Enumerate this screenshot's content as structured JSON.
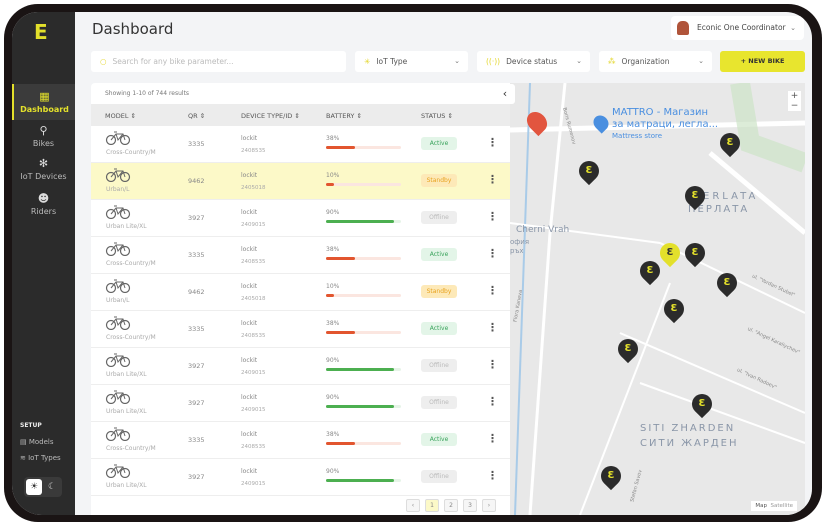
{
  "app": {
    "logo": "E",
    "title": "Dashboard"
  },
  "sidebar": {
    "items": [
      {
        "label": "Dashboard",
        "icon": "grid-icon",
        "active": true
      },
      {
        "label": "Bikes",
        "icon": "bike-icon"
      },
      {
        "label": "IoT Devices",
        "icon": "network-icon"
      },
      {
        "label": "Riders",
        "icon": "users-icon"
      }
    ],
    "setup_label": "SETUP",
    "setup_items": [
      {
        "label": "Models",
        "icon": "list-icon"
      },
      {
        "label": "IoT Types",
        "icon": "wifi-icon"
      }
    ],
    "theme": {
      "light": "☀",
      "dark": "☾"
    }
  },
  "user": {
    "name": "Econic One Coordinator"
  },
  "filters": {
    "search_placeholder": "Search for any bike parameter...",
    "iot_type": "IoT Type",
    "device_status": "Device status",
    "organization": "Organization",
    "new_bike": "+ NEW BIKE"
  },
  "table": {
    "showing": "Showing 1-10 of 744 results",
    "columns": [
      "MODEL",
      "QR",
      "DEVICE TYPE/ID",
      "BATTERY",
      "STATUS"
    ],
    "rows": [
      {
        "model": "Cross-Country/M",
        "qr": "3335",
        "device": "lockit",
        "id": "2408535",
        "battery": "38%",
        "status": "Active"
      },
      {
        "model": "Urban/L",
        "qr": "9462",
        "device": "lockit",
        "id": "2405018",
        "battery": "10%",
        "status": "Standby",
        "highlighted": true
      },
      {
        "model": "Urban Lite/XL",
        "qr": "3927",
        "device": "lockit",
        "id": "2409015",
        "battery": "90%",
        "status": "Offline"
      },
      {
        "model": "Cross-Country/M",
        "qr": "3335",
        "device": "lockit",
        "id": "2408535",
        "battery": "38%",
        "status": "Active"
      },
      {
        "model": "Urban/L",
        "qr": "9462",
        "device": "lockit",
        "id": "2405018",
        "battery": "10%",
        "status": "Standby"
      },
      {
        "model": "Cross-Country/M",
        "qr": "3335",
        "device": "lockit",
        "id": "2408535",
        "battery": "38%",
        "status": "Active"
      },
      {
        "model": "Urban Lite/XL",
        "qr": "3927",
        "device": "lockit",
        "id": "2409015",
        "battery": "90%",
        "status": "Offline"
      },
      {
        "model": "Urban Lite/XL",
        "qr": "3927",
        "device": "lockit",
        "id": "2409015",
        "battery": "90%",
        "status": "Offline"
      },
      {
        "model": "Cross-Country/M",
        "qr": "3335",
        "device": "lockit",
        "id": "2408535",
        "battery": "38%",
        "status": "Active"
      },
      {
        "model": "Urban Lite/XL",
        "qr": "3927",
        "device": "lockit",
        "id": "2409015",
        "battery": "90%",
        "status": "Offline"
      }
    ],
    "pages": [
      "‹",
      "1",
      "2",
      "3",
      "›"
    ]
  },
  "map": {
    "labels": [
      "MATTRO - Магазин",
      "за матраци, легла...",
      "Mattress store",
      "ERLATA",
      "ПЕРЛАТА",
      "Cherni Vrah",
      "офия",
      "ръх",
      "SITI ZHARDEN",
      "СИТИ ЖАРДЕН",
      "Boris Rumenov",
      "ul. \"Yordan Stubel\"",
      "ul. \"Angel Karaliychev\"",
      "ul. \"Ivan Radoev\"",
      "Stefan Savov",
      "Flora Kaneva"
    ],
    "zoom_in": "+",
    "zoom_out": "−",
    "map_type": "Map",
    "satellite": "Satellite"
  },
  "colors": {
    "accent": "#e8e52e",
    "active": "#3aa35c",
    "standby": "#e8a320",
    "offline": "#bbbbbb",
    "battery_low": "#e2552f",
    "battery_high": "#4caf50"
  }
}
